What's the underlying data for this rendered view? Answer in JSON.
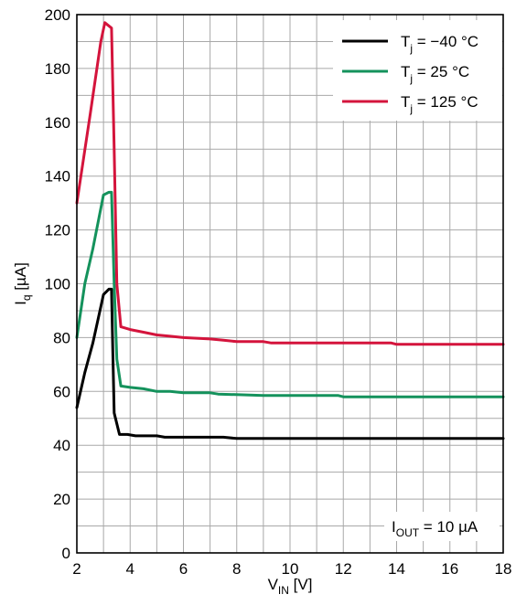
{
  "chart_data": {
    "type": "line",
    "xlabel": {
      "main": "V",
      "sub": "IN",
      "unit": " [V]"
    },
    "ylabel": {
      "main": "I",
      "sub": "q",
      "unit": " [µA]"
    },
    "xlim": [
      2,
      18
    ],
    "ylim": [
      0,
      200
    ],
    "x_ticks": [
      2,
      4,
      6,
      8,
      10,
      12,
      14,
      16,
      18
    ],
    "y_ticks": [
      0,
      20,
      40,
      60,
      80,
      100,
      120,
      140,
      160,
      180,
      200
    ],
    "x_minor_step": 1,
    "y_minor_step": 10,
    "grid": true,
    "legend_position": "top-right",
    "annotation": {
      "main": "I",
      "sub": "OUT",
      "rest": " = 10 µA"
    },
    "series": [
      {
        "name": "T_j = −40 °C",
        "label": {
          "main": "T",
          "sub": "j",
          "rest": " = −40 °C"
        },
        "color": "#000000",
        "points": [
          [
            2.0,
            54
          ],
          [
            2.3,
            67
          ],
          [
            2.6,
            78
          ],
          [
            3.0,
            96
          ],
          [
            3.2,
            98
          ],
          [
            3.3,
            98
          ],
          [
            3.35,
            75
          ],
          [
            3.4,
            52
          ],
          [
            3.6,
            44
          ],
          [
            3.9,
            44
          ],
          [
            4.2,
            43.5
          ],
          [
            5.0,
            43.5
          ],
          [
            5.3,
            43
          ],
          [
            7.5,
            43
          ],
          [
            8.0,
            42.5
          ],
          [
            18.0,
            42.5
          ]
        ]
      },
      {
        "name": "T_j = 25 °C",
        "label": {
          "main": "T",
          "sub": "j",
          "rest": " = 25 °C"
        },
        "color": "#14925c",
        "points": [
          [
            2.0,
            80
          ],
          [
            2.3,
            100
          ],
          [
            2.6,
            113
          ],
          [
            3.0,
            133
          ],
          [
            3.2,
            134
          ],
          [
            3.3,
            134
          ],
          [
            3.4,
            100
          ],
          [
            3.5,
            72
          ],
          [
            3.65,
            62
          ],
          [
            4.0,
            61.5
          ],
          [
            4.5,
            61
          ],
          [
            5.0,
            60
          ],
          [
            5.5,
            60
          ],
          [
            6.0,
            59.5
          ],
          [
            7.0,
            59.5
          ],
          [
            7.3,
            59
          ],
          [
            9.0,
            58.5
          ],
          [
            11.8,
            58.5
          ],
          [
            12.0,
            58
          ],
          [
            18.0,
            58
          ]
        ]
      },
      {
        "name": "T_j = 125 °C",
        "label": {
          "main": "T",
          "sub": "j",
          "rest": " = 125 °C"
        },
        "color": "#d4143c",
        "points": [
          [
            2.0,
            130
          ],
          [
            2.5,
            163
          ],
          [
            2.9,
            190
          ],
          [
            3.05,
            197
          ],
          [
            3.3,
            195
          ],
          [
            3.4,
            150
          ],
          [
            3.5,
            100
          ],
          [
            3.65,
            84
          ],
          [
            4.0,
            83
          ],
          [
            4.5,
            82
          ],
          [
            5.0,
            81
          ],
          [
            5.5,
            80.5
          ],
          [
            6.0,
            80
          ],
          [
            7.0,
            79.5
          ],
          [
            7.5,
            79
          ],
          [
            8.0,
            78.5
          ],
          [
            9.0,
            78.5
          ],
          [
            9.3,
            78
          ],
          [
            13.8,
            78
          ],
          [
            14.0,
            77.5
          ],
          [
            18.0,
            77.5
          ]
        ]
      }
    ]
  }
}
